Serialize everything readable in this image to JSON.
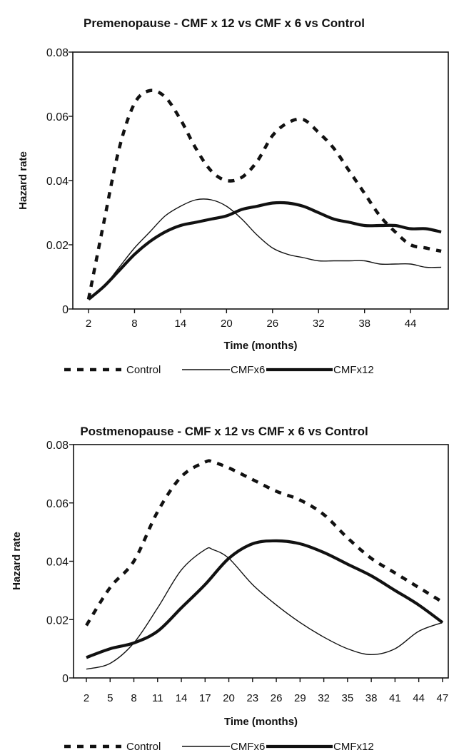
{
  "chart_data": [
    {
      "type": "line",
      "title": "Premenopause - CMF x 12 vs CMF x 6 vs Control",
      "xlabel": "Time (months)",
      "ylabel": "Hazard rate",
      "xlim": [
        2,
        48
      ],
      "ylim": [
        0,
        0.08
      ],
      "xticks": [
        "2",
        "8",
        "14",
        "20",
        "26",
        "32",
        "38",
        "44"
      ],
      "xtick_values": [
        2,
        8,
        14,
        20,
        26,
        32,
        38,
        44
      ],
      "yticks": [
        "0",
        "0.02",
        "0.04",
        "0.06",
        "0.08"
      ],
      "ytick_values": [
        0,
        0.02,
        0.04,
        0.06,
        0.08
      ],
      "grid": false,
      "legend_position": "bottom",
      "series": [
        {
          "name": "Control",
          "style": "dashed",
          "x": [
            2,
            4,
            6,
            8,
            10,
            12,
            14,
            16,
            18,
            20,
            22,
            24,
            26,
            28,
            30,
            32,
            34,
            36,
            38,
            40,
            42,
            44,
            46,
            48
          ],
          "y": [
            0.003,
            0.027,
            0.05,
            0.064,
            0.068,
            0.066,
            0.059,
            0.05,
            0.043,
            0.04,
            0.041,
            0.046,
            0.054,
            0.058,
            0.059,
            0.055,
            0.05,
            0.043,
            0.036,
            0.029,
            0.024,
            0.02,
            0.019,
            0.018
          ]
        },
        {
          "name": "CMFx6",
          "style": "thin",
          "x": [
            2,
            4,
            6,
            8,
            10,
            12,
            14,
            16,
            18,
            20,
            22,
            24,
            26,
            28,
            30,
            32,
            34,
            36,
            38,
            40,
            42,
            44,
            46,
            48
          ],
          "y": [
            0.003,
            0.007,
            0.013,
            0.019,
            0.024,
            0.029,
            0.032,
            0.034,
            0.034,
            0.032,
            0.028,
            0.023,
            0.019,
            0.017,
            0.016,
            0.015,
            0.015,
            0.015,
            0.015,
            0.014,
            0.014,
            0.014,
            0.013,
            0.013
          ]
        },
        {
          "name": "CMFx12",
          "style": "thick",
          "x": [
            2,
            4,
            6,
            8,
            10,
            12,
            14,
            16,
            18,
            20,
            22,
            24,
            26,
            28,
            30,
            32,
            34,
            36,
            38,
            40,
            42,
            44,
            46,
            48
          ],
          "y": [
            0.003,
            0.007,
            0.012,
            0.017,
            0.021,
            0.024,
            0.026,
            0.027,
            0.028,
            0.029,
            0.031,
            0.032,
            0.033,
            0.033,
            0.032,
            0.03,
            0.028,
            0.027,
            0.026,
            0.026,
            0.026,
            0.025,
            0.025,
            0.024
          ]
        }
      ]
    },
    {
      "type": "line",
      "title": "Postmenopause - CMF x 12 vs CMF x 6 vs Control",
      "xlabel": "Time (months)",
      "ylabel": "Hazard rate",
      "xlim": [
        2,
        47
      ],
      "ylim": [
        0,
        0.08
      ],
      "xticks": [
        "2",
        "5",
        "8",
        "11",
        "14",
        "17",
        "20",
        "23",
        "26",
        "29",
        "32",
        "35",
        "38",
        "41",
        "44",
        "47"
      ],
      "xtick_values": [
        2,
        5,
        8,
        11,
        14,
        17,
        20,
        23,
        26,
        29,
        32,
        35,
        38,
        41,
        44,
        47
      ],
      "yticks": [
        "0",
        "0.02",
        "0.04",
        "0.06",
        "0.08"
      ],
      "ytick_values": [
        0,
        0.02,
        0.04,
        0.06,
        0.08
      ],
      "grid": false,
      "legend_position": "bottom",
      "series": [
        {
          "name": "Control",
          "style": "dashed",
          "x": [
            2,
            5,
            8,
            11,
            14,
            17,
            18,
            20,
            23,
            26,
            29,
            32,
            35,
            38,
            41,
            44,
            47
          ],
          "y": [
            0.018,
            0.031,
            0.04,
            0.057,
            0.069,
            0.074,
            0.074,
            0.072,
            0.068,
            0.064,
            0.061,
            0.056,
            0.048,
            0.041,
            0.036,
            0.031,
            0.026
          ]
        },
        {
          "name": "CMFx6",
          "style": "thin",
          "x": [
            2,
            5,
            8,
            11,
            14,
            17,
            18,
            20,
            23,
            26,
            29,
            32,
            35,
            38,
            41,
            44,
            47
          ],
          "y": [
            0.003,
            0.005,
            0.012,
            0.024,
            0.037,
            0.044,
            0.044,
            0.041,
            0.032,
            0.025,
            0.019,
            0.014,
            0.01,
            0.008,
            0.01,
            0.016,
            0.019
          ]
        },
        {
          "name": "CMFx12",
          "style": "thick",
          "x": [
            2,
            5,
            8,
            11,
            14,
            17,
            20,
            23,
            26,
            29,
            32,
            35,
            38,
            41,
            44,
            47
          ],
          "y": [
            0.007,
            0.01,
            0.012,
            0.016,
            0.024,
            0.032,
            0.041,
            0.046,
            0.047,
            0.046,
            0.043,
            0.039,
            0.035,
            0.03,
            0.025,
            0.019
          ]
        }
      ]
    }
  ]
}
